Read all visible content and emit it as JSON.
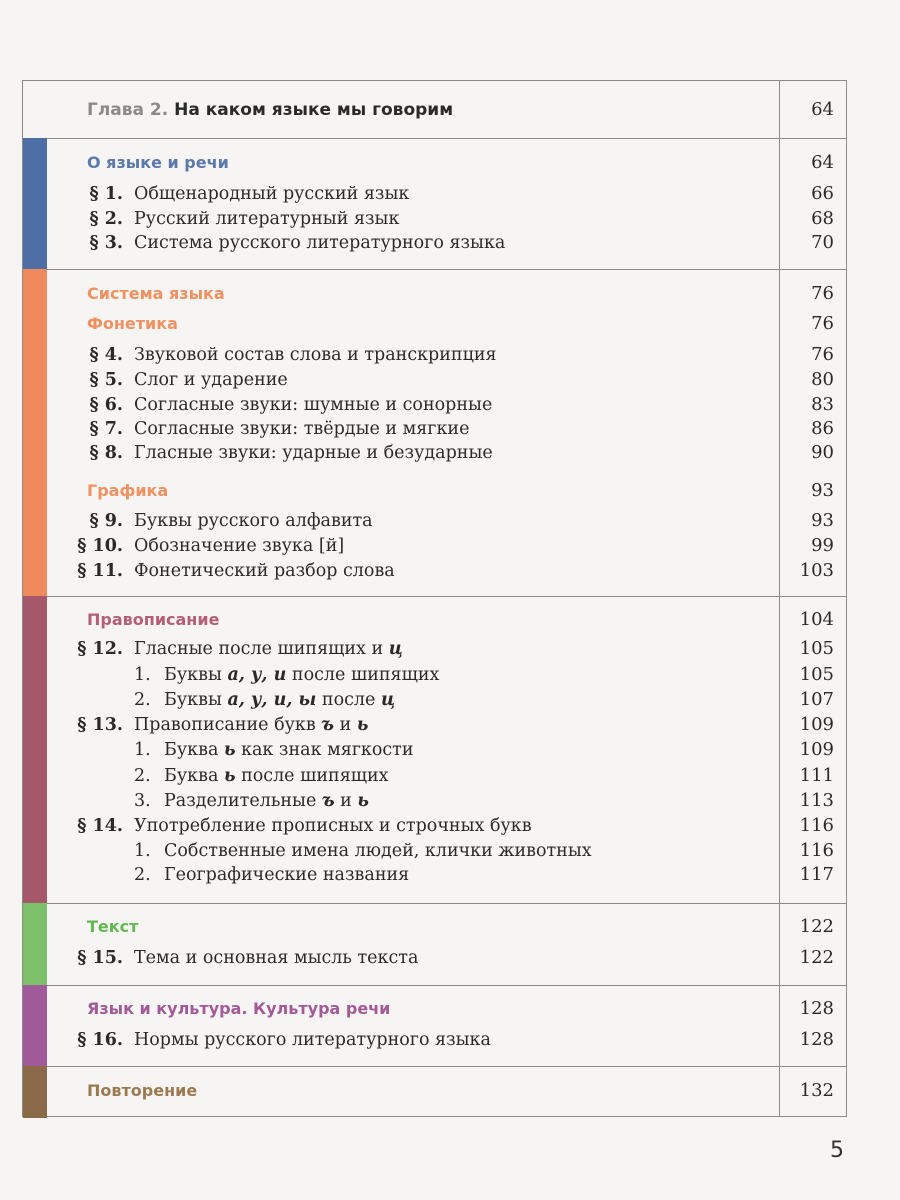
{
  "chapter": {
    "prefix": "Глава 2.",
    "title": "На каком языке мы говорим",
    "page": "64"
  },
  "sections": [
    {
      "color": "#4d6fa6",
      "heading_color": "#5b78aa",
      "rows": [
        {
          "type": "head",
          "title": [
            {
              "t": "О языке и речи"
            }
          ],
          "page": "64"
        },
        {
          "num": "§ 1.",
          "title": [
            {
              "t": "Общенародный русский язык"
            }
          ],
          "page": "66"
        },
        {
          "num": "§ 2.",
          "title": [
            {
              "t": "Русский литературный язык"
            }
          ],
          "page": "68"
        },
        {
          "num": "§ 3.",
          "title": [
            {
              "t": "Система русского литературного языка"
            }
          ],
          "page": "70"
        }
      ]
    },
    {
      "color": "#f08a5d",
      "heading_color": "#ef9160",
      "rows": [
        {
          "type": "head",
          "title": [
            {
              "t": "Система языка"
            }
          ],
          "page": "76"
        },
        {
          "type": "head",
          "title": [
            {
              "t": "Фонетика"
            }
          ],
          "page": "76"
        },
        {
          "num": "§ 4.",
          "title": [
            {
              "t": "Звуковой состав слова и транскрипция"
            }
          ],
          "page": "76"
        },
        {
          "num": "§ 5.",
          "title": [
            {
              "t": "Слог и ударение"
            }
          ],
          "page": "80"
        },
        {
          "num": "§ 6.",
          "title": [
            {
              "t": "Согласные звуки: шумные и сонорные"
            }
          ],
          "page": "83"
        },
        {
          "num": "§ 7.",
          "title": [
            {
              "t": "Согласные звуки: твёрдые и мягкие"
            }
          ],
          "page": "86"
        },
        {
          "num": "§ 8.",
          "title": [
            {
              "t": "Гласные звуки: ударные и безударные"
            }
          ],
          "page": "90"
        },
        {
          "type": "head",
          "title": [
            {
              "t": "Графика"
            }
          ],
          "page": "93"
        },
        {
          "num": "§ 9.",
          "title": [
            {
              "t": "Буквы русского алфавита"
            }
          ],
          "page": "93"
        },
        {
          "num": "§ 10.",
          "title": [
            {
              "t": "Обозначение звука [й]"
            }
          ],
          "page": "99"
        },
        {
          "num": "§ 11.",
          "title": [
            {
              "t": "Фонетический разбор слова"
            }
          ],
          "page": "103"
        }
      ]
    },
    {
      "color": "#a5586a",
      "heading_color": "#b55f74",
      "rows": [
        {
          "type": "head",
          "title": [
            {
              "t": "Правописание"
            }
          ],
          "page": "104"
        },
        {
          "num": "§ 12.",
          "title": [
            {
              "t": "Гласные после шипящих и "
            },
            {
              "t": "ц",
              "b": true
            }
          ],
          "page": "105"
        },
        {
          "type": "sub",
          "subnum": "1.",
          "title": [
            {
              "t": "Буквы "
            },
            {
              "t": "а, у, и",
              "b": true
            },
            {
              "t": " после шипящих"
            }
          ],
          "page": "105"
        },
        {
          "type": "sub",
          "subnum": "2.",
          "title": [
            {
              "t": "Буквы "
            },
            {
              "t": "а, у, и, ы",
              "b": true
            },
            {
              "t": " после "
            },
            {
              "t": "ц",
              "b": true
            }
          ],
          "page": "107"
        },
        {
          "num": "§ 13.",
          "title": [
            {
              "t": "Правописание букв "
            },
            {
              "t": "ъ",
              "b": true
            },
            {
              "t": " и "
            },
            {
              "t": "ь",
              "b": true
            }
          ],
          "page": "109"
        },
        {
          "type": "sub",
          "subnum": "1.",
          "title": [
            {
              "t": "Буква "
            },
            {
              "t": "ь",
              "b": true
            },
            {
              "t": " как знак мягкости"
            }
          ],
          "page": "109"
        },
        {
          "type": "sub",
          "subnum": "2.",
          "title": [
            {
              "t": "Буква "
            },
            {
              "t": "ь",
              "b": true
            },
            {
              "t": " после шипящих"
            }
          ],
          "page": "111"
        },
        {
          "type": "sub",
          "subnum": "3.",
          "title": [
            {
              "t": "Разделительные "
            },
            {
              "t": "ъ",
              "b": true
            },
            {
              "t": " и "
            },
            {
              "t": "ь",
              "b": true
            }
          ],
          "page": "113"
        },
        {
          "num": "§ 14.",
          "title": [
            {
              "t": "Употребление прописных и строчных букв"
            }
          ],
          "page": "116"
        },
        {
          "type": "sub",
          "subnum": "1.",
          "title": [
            {
              "t": "Собственные имена людей, клички животных"
            }
          ],
          "page": "116"
        },
        {
          "type": "sub",
          "subnum": "2.",
          "title": [
            {
              "t": "Географические названия"
            }
          ],
          "page": "117"
        }
      ]
    },
    {
      "color": "#7cc06a",
      "heading_color": "#62b852",
      "rows": [
        {
          "type": "head",
          "title": [
            {
              "t": "Текст"
            }
          ],
          "page": "122"
        },
        {
          "num": "§ 15.",
          "title": [
            {
              "t": "Тема и основная мысль текста"
            }
          ],
          "page": "122"
        }
      ]
    },
    {
      "color": "#a05a9a",
      "heading_color": "#a25a98",
      "rows": [
        {
          "type": "head",
          "title": [
            {
              "t": "Язык и культура. Культура речи"
            }
          ],
          "page": "128"
        },
        {
          "num": "§ 16.",
          "title": [
            {
              "t": "Нормы русского литературного языка"
            }
          ],
          "page": "128"
        }
      ]
    },
    {
      "color": "#8a6a48",
      "heading_color": "#9b7a52",
      "rows": [
        {
          "type": "head",
          "title": [
            {
              "t": "Повторение"
            }
          ],
          "page": "132"
        }
      ]
    }
  ],
  "page_number": "5"
}
